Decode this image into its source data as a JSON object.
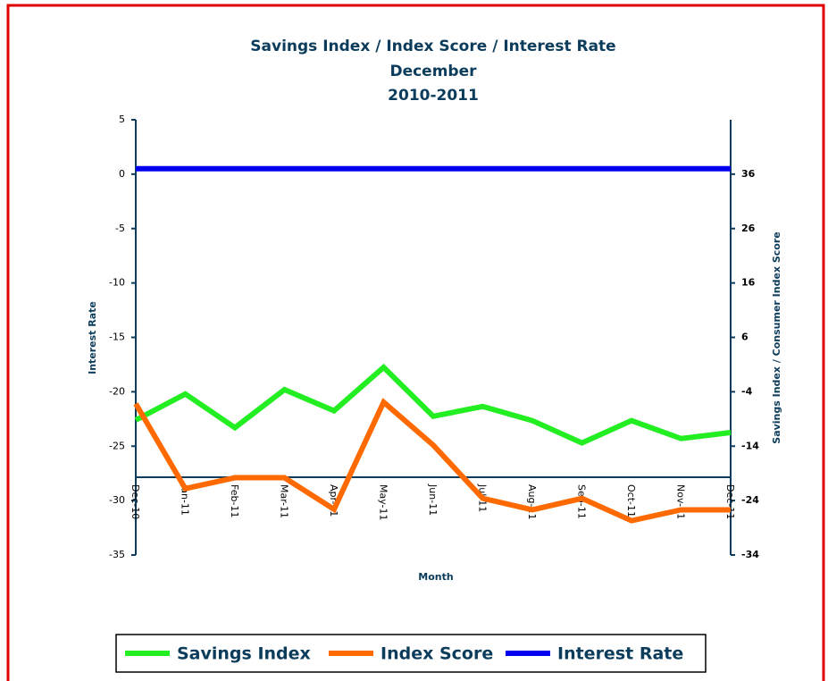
{
  "chart_data": {
    "type": "line",
    "title": [
      "Savings Index / Index Score / Interest Rate",
      "December",
      "2010-2011"
    ],
    "x_label": "Month",
    "y_label": "Interest Rate",
    "y2_label": "Savings Index / Consumer Index Score",
    "categories": [
      "Dec-10",
      "Jan-11",
      "Feb-11",
      "Mar-11",
      "Apr-11",
      "May-11",
      "Jun-11",
      "Jul-11",
      "Aug-11",
      "Sep-11",
      "Oct-11",
      "Nov-11",
      "Dec-11"
    ],
    "series": [
      {
        "name": "Savings Index",
        "color": "#22ee22",
        "axis": "y2",
        "values": [
          -9.2,
          -4.4,
          -10.6,
          -3.6,
          -7.5,
          0.5,
          -8.5,
          -6.7,
          -9.3,
          -13.4,
          -9.3,
          -12.6,
          -11.5
        ]
      },
      {
        "name": "Index Score",
        "color": "#ff6a00",
        "axis": "y2",
        "values": [
          -6.2,
          -21.8,
          -19.8,
          -19.8,
          -25.6,
          -5.9,
          -13.8,
          -23.6,
          -25.7,
          -23.6,
          -27.7,
          -25.7,
          -25.7
        ]
      },
      {
        "name": "Interest Rate",
        "color": "#0000ee",
        "values": [
          0.5,
          0.5,
          0.5,
          0.5,
          0.5,
          0.5,
          0.5,
          0.5,
          0.5,
          0.5,
          0.5,
          0.5,
          0.5
        ]
      }
    ],
    "ylim": [
      -35,
      5
    ],
    "yticks": [
      5,
      0,
      -5,
      -10,
      -15,
      -20,
      -25,
      -30,
      -35
    ],
    "y2lim": [
      -34,
      46
    ],
    "y2ticks": [
      36,
      26,
      16,
      6,
      -4,
      -14,
      -24,
      -34
    ],
    "legend": "bottom"
  }
}
